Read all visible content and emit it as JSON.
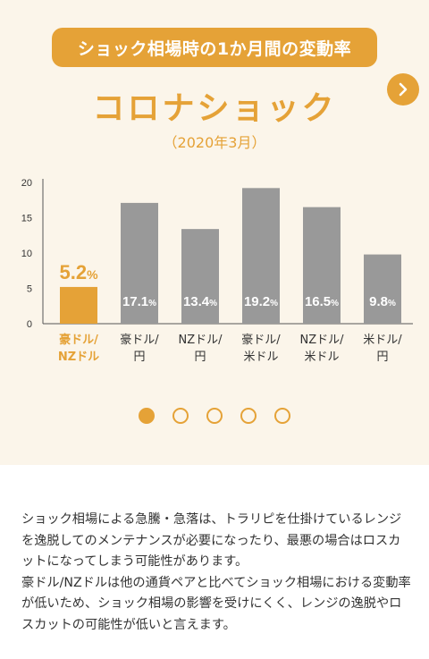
{
  "banner": "ショック相場時の1か月間の変動率",
  "title": "コロナショック",
  "subtitle": "（2020年3月）",
  "colors": {
    "accent": "#e5a237",
    "bar": "#999999",
    "background": "#fbf5ea"
  },
  "next_icon": "chevron-right-icon",
  "chart_data": {
    "type": "bar",
    "categories": [
      [
        "豪ドル/",
        "NZドル"
      ],
      [
        "豪ドル/",
        "円"
      ],
      [
        "NZドル/",
        "円"
      ],
      [
        "豪ドル/",
        "米ドル"
      ],
      [
        "NZドル/",
        "米ドル"
      ],
      [
        "米ドル/",
        "円"
      ]
    ],
    "values": [
      5.2,
      17.1,
      13.4,
      19.2,
      16.5,
      9.8
    ],
    "value_labels": [
      "5.2",
      "17.1",
      "13.4",
      "19.2",
      "16.5",
      "9.8"
    ],
    "unit": "%",
    "highlight_index": 0,
    "ylim": [
      0,
      20
    ],
    "yticks": [
      0,
      5,
      10,
      15,
      20
    ]
  },
  "pagination": {
    "count": 5,
    "active": 0
  },
  "description": [
    "ショック相場による急騰・急落は、トラリピを仕掛けているレンジを逸脱してのメンテナンスが必要になったり、最悪の場合はロスカットになってしまう可能性があります。",
    "豪ドル/NZドルは他の通貨ペアと比べてショック相場における変動率が低いため、ショック相場の影響を受けにくく、レンジの逸脱やロスカットの可能性が低いと言えます。"
  ]
}
